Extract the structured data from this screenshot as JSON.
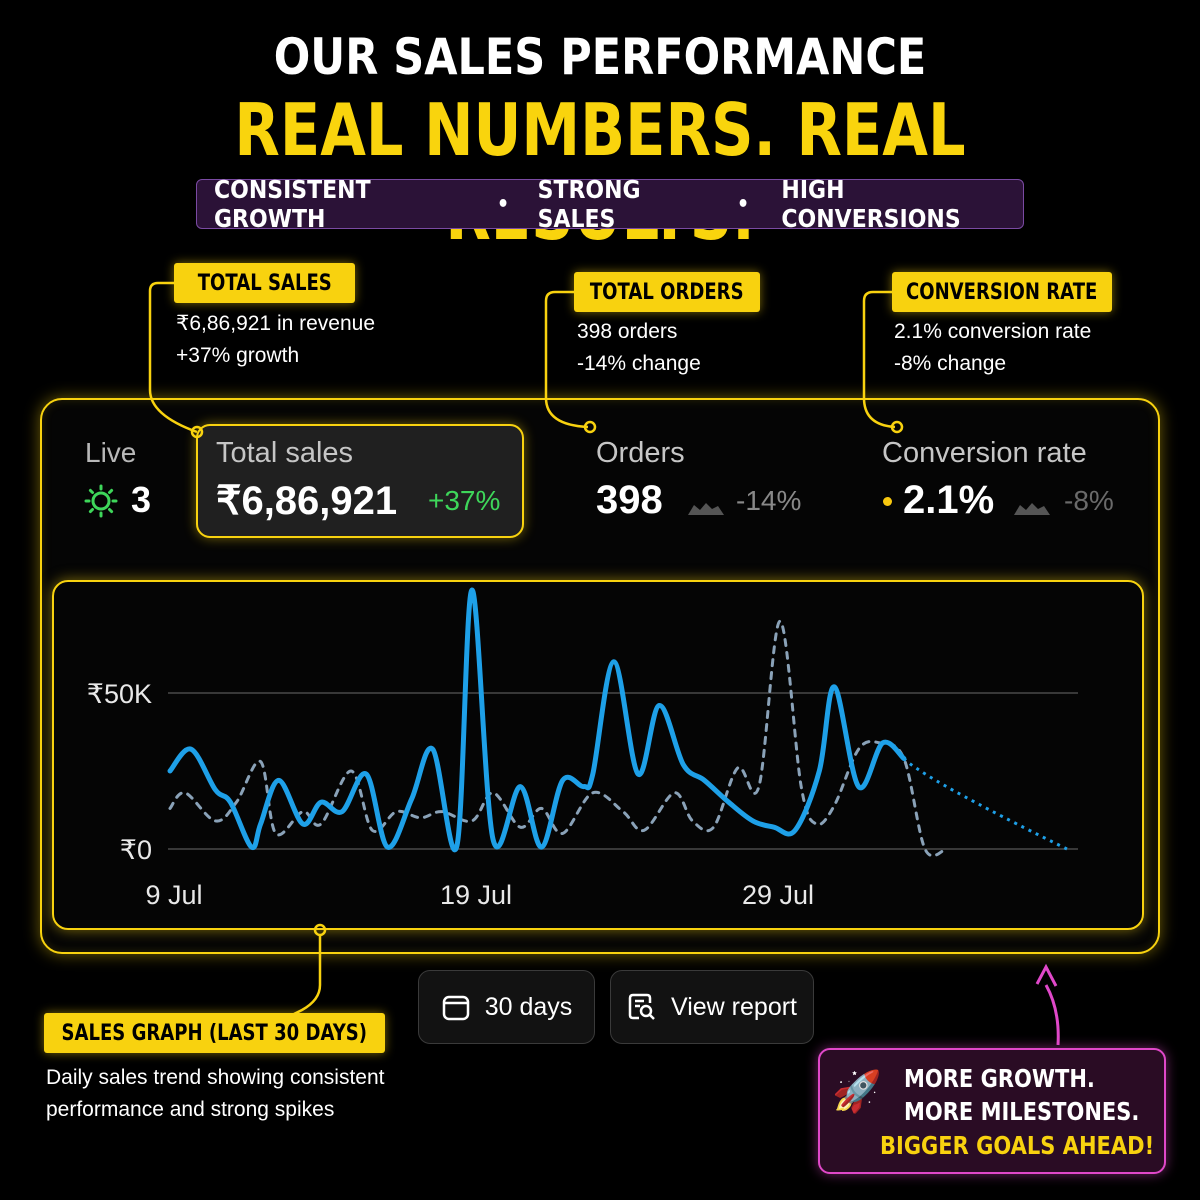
{
  "header": {
    "title": "OUR SALES PERFORMANCE",
    "subtitle": "REAL NUMBERS. REAL RESULTS.",
    "taglines": [
      "CONSISTENT GROWTH",
      "STRONG SALES",
      "HIGH CONVERSIONS"
    ],
    "separator": "•"
  },
  "callouts": {
    "sales": {
      "tag": "TOTAL SALES",
      "line1": "₹6,86,921 in revenue",
      "line2": "+37% growth"
    },
    "orders": {
      "tag": "TOTAL ORDERS",
      "line1": "398 orders",
      "line2": "-14% change"
    },
    "conversion": {
      "tag": "CONVERSION RATE",
      "line1": "2.1% conversion rate",
      "line2": "-8% change"
    },
    "graph": {
      "tag": "SALES GRAPH (LAST 30 DAYS)",
      "line1": "Daily sales trend showing consistent",
      "line2": "performance and strong spikes"
    }
  },
  "dashboard": {
    "live": {
      "label": "Live",
      "count": "3",
      "icon": "live-pulse-icon"
    },
    "total_sales": {
      "label": "Total sales",
      "value": "₹6,86,921",
      "delta": "+37%"
    },
    "orders": {
      "label": "Orders",
      "value": "398",
      "delta": "-14%"
    },
    "conversion": {
      "label": "Conversion rate",
      "value": "2.1%",
      "delta": "-8%"
    }
  },
  "buttons": {
    "range": {
      "label": "30 days",
      "icon": "calendar-icon"
    },
    "report": {
      "label": "View report",
      "icon": "report-search-icon"
    }
  },
  "promo": {
    "icon": "🚀",
    "line1": "MORE GROWTH.",
    "line2": "MORE MILESTONES.",
    "line3": "BIGGER GOALS AHEAD!"
  },
  "colors": {
    "accent": "#f8d20f",
    "current": "#1ea0e8",
    "previous": "#8aa2b8",
    "positive": "#3ed65a",
    "promo_border": "#e048c9"
  },
  "chart_data": {
    "type": "line",
    "ylim": [
      0,
      83000
    ],
    "ytick_labels": [
      "₹0",
      "₹50K"
    ],
    "ytick_values": [
      0,
      50000
    ],
    "xtick_labels": [
      "9 Jul",
      "19 Jul",
      "29 Jul"
    ],
    "xtick_days": [
      0,
      10,
      20
    ],
    "grid": true,
    "series": [
      {
        "style": "solid",
        "x": [
          0,
          0.7,
          1.5,
          2,
          2.7,
          3,
          3.6,
          4.4,
          5,
          5.7,
          6.5,
          7.2,
          8,
          8.7,
          9.5,
          10,
          10.7,
          11.6,
          12.3,
          13,
          13.7,
          14,
          14.7,
          15.5,
          16.2,
          17,
          17.7,
          18.5,
          19.3,
          20,
          20.7,
          21.5,
          22,
          22.8,
          23.6,
          24.3,
          25,
          25.5,
          26.3,
          27,
          27.6,
          28.3,
          28.7,
          29,
          29.7
        ],
        "y": [
          25000,
          32000,
          19000,
          15000,
          600,
          8000,
          22000,
          8000,
          15000,
          12000,
          24000,
          600,
          16000,
          32000,
          1000,
          83000,
          3000,
          20000,
          600,
          22000,
          20000,
          24000,
          60000,
          24000,
          46000,
          27000,
          22000,
          15000,
          9000,
          7000,
          6000,
          25000,
          52000,
          20000,
          34000,
          29000,
          600,
          600,
          600,
          600,
          600,
          600,
          600,
          600,
          600
        ]
      },
      {
        "style": "dashed",
        "x": [
          0,
          0.5,
          1.5,
          2.2,
          3,
          3.5,
          4.4,
          5,
          6,
          6.7,
          7.5,
          8.3,
          9,
          10,
          10.7,
          11.6,
          12.3,
          13,
          14,
          15,
          15.7,
          16.7,
          17.3,
          18,
          18.8,
          19.5,
          20.2,
          20.9,
          21.4,
          22,
          22.8,
          23.5,
          24.3,
          25,
          25.7
        ],
        "y": [
          13000,
          18000,
          9000,
          15000,
          28000,
          5000,
          12000,
          8000,
          25000,
          6000,
          12000,
          10000,
          12000,
          9000,
          18000,
          7000,
          13000,
          5000,
          18000,
          12000,
          6000,
          18000,
          9000,
          7000,
          26000,
          20000,
          73000,
          20000,
          8000,
          14000,
          32000,
          34000,
          29000,
          0,
          0
        ]
      }
    ]
  }
}
